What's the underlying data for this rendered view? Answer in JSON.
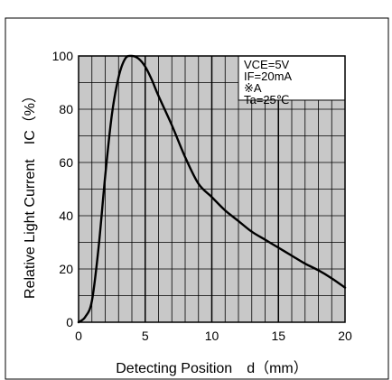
{
  "chart_data": {
    "type": "line",
    "title": "",
    "xlabel": "Detecting Position　d（mm）",
    "ylabel": "Relative Light Current　IC（%）",
    "xlim": [
      0,
      20
    ],
    "ylim": [
      0,
      100
    ],
    "x_ticks": [
      0,
      5,
      10,
      15,
      20
    ],
    "y_ticks": [
      0,
      20,
      40,
      60,
      80,
      100
    ],
    "x_tick_labels": [
      "0",
      "5",
      "10",
      "15",
      "20"
    ],
    "y_tick_labels": [
      "0",
      "20",
      "40",
      "60",
      "80",
      "100"
    ],
    "grid": true,
    "grid_minor_x_step": 1,
    "grid_minor_y_step": 10,
    "grid_major_x_step": 5,
    "plot_background": "#c8c8c8",
    "annotation_position": "top-right",
    "annotation_lines": [
      "VCE=5V",
      "IF=20mA",
      "※A",
      "Ta=25℃"
    ],
    "series": [
      {
        "line_color": "#000000",
        "x": [
          0,
          0.5,
          1.0,
          1.5,
          2.0,
          2.5,
          3.0,
          3.5,
          4.0,
          4.5,
          5.0,
          5.5,
          6.0,
          7.0,
          8.0,
          9.0,
          10.0,
          11.0,
          12.0,
          13.0,
          14.0,
          15.0,
          16.0,
          17.0,
          18.0,
          19.0,
          20.0
        ],
        "y": [
          0,
          2,
          8,
          28,
          55,
          78,
          92,
          99,
          100,
          99,
          96,
          91,
          85,
          74,
          62,
          52,
          47,
          42,
          38,
          34,
          31,
          28,
          25,
          22,
          19.5,
          16.5,
          13
        ]
      }
    ]
  }
}
